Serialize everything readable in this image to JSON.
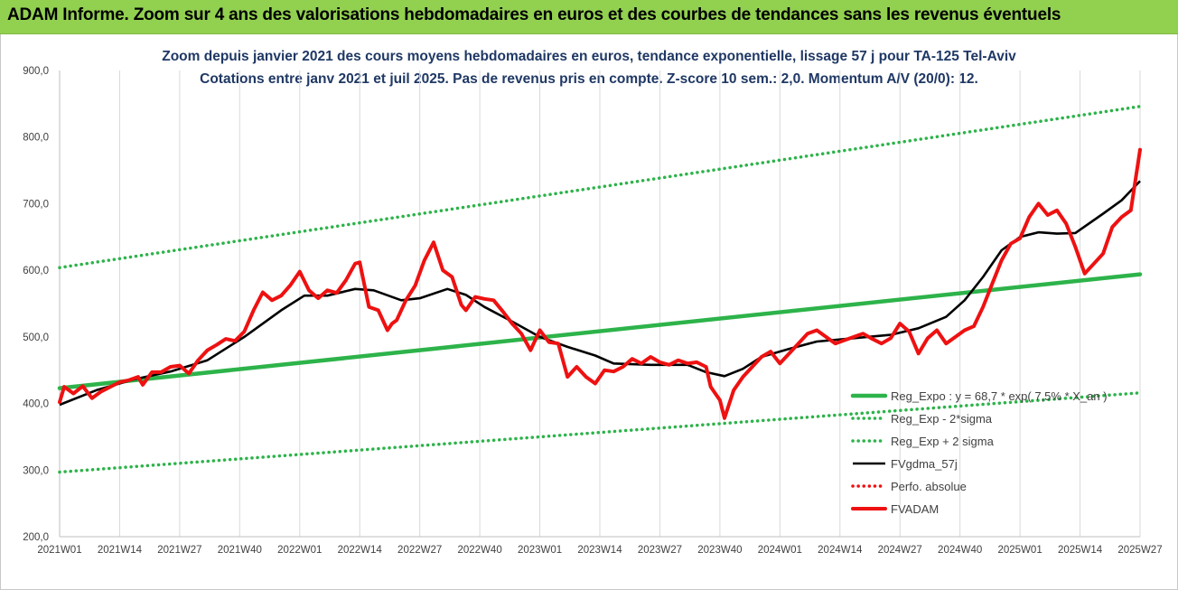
{
  "header": {
    "title": "ADAM Informe. Zoom sur 4 ans des valorisations hebdomadaires en euros et des courbes de tendances sans les revenus éventuels"
  },
  "colors": {
    "header_bg": "#92d050",
    "title_text": "#1f3864",
    "trend": "#2db34a",
    "band": "#2db34a",
    "smooth": "#000000",
    "price": "#ee1111",
    "perf": "#ee1111",
    "grid": "#d9d9d9"
  },
  "chart_data": {
    "type": "line",
    "title": "Zoom depuis janvier 2021 des cours moyens hebdomadaires en euros, tendance exponentielle, lissage 57 j pour TA-125 Tel-Aviv",
    "subtitle": "Cotations entre janv 2021 et juil 2025. Pas de revenus pris en compte. Z-score 10 sem.: 2,0. Momentum A/V (20/0): 12.",
    "xlabel": "",
    "ylabel": "",
    "ylim": [
      200,
      900
    ],
    "yticks": [
      "200,0",
      "300,0",
      "400,0",
      "500,0",
      "600,0",
      "700,0",
      "800,0",
      "900,0"
    ],
    "xlim": [
      0,
      234
    ],
    "xticks": [
      {
        "label": "2021W01",
        "i": 0
      },
      {
        "label": "2021W14",
        "i": 13
      },
      {
        "label": "2021W27",
        "i": 26
      },
      {
        "label": "2021W40",
        "i": 39
      },
      {
        "label": "2022W01",
        "i": 52
      },
      {
        "label": "2022W14",
        "i": 65
      },
      {
        "label": "2022W27",
        "i": 78
      },
      {
        "label": "2022W40",
        "i": 91
      },
      {
        "label": "2023W01",
        "i": 104
      },
      {
        "label": "2023W14",
        "i": 117
      },
      {
        "label": "2023W27",
        "i": 130
      },
      {
        "label": "2023W40",
        "i": 143
      },
      {
        "label": "2024W01",
        "i": 156
      },
      {
        "label": "2024W14",
        "i": 169
      },
      {
        "label": "2024W27",
        "i": 182
      },
      {
        "label": "2024W40",
        "i": 195
      },
      {
        "label": "2025W01",
        "i": 208
      },
      {
        "label": "2025W14",
        "i": 221
      },
      {
        "label": "2025W27",
        "i": 234
      }
    ],
    "grid": "vertical",
    "legend_position": "bottom-right",
    "series": [
      {
        "name": "Reg_Expo : y = 68,7 * exp( 7,5% * X_an )",
        "key": "trend",
        "style": "solid-thick",
        "color": "#2db34a",
        "x": [
          0,
          234
        ],
        "values": [
          423,
          594
        ]
      },
      {
        "name": "Reg_Exp - 2*sigma",
        "key": "lower",
        "style": "dotted",
        "color": "#2db34a",
        "x": [
          0,
          234
        ],
        "values": [
          297,
          416
        ]
      },
      {
        "name": "Reg_Exp + 2 sigma",
        "key": "upper",
        "style": "dotted",
        "color": "#2db34a",
        "x": [
          0,
          234
        ],
        "values": [
          604,
          846
        ]
      },
      {
        "name": "FVgdma_57j",
        "key": "smooth",
        "style": "solid",
        "color": "#000000",
        "x": [
          0,
          8,
          16,
          24,
          32,
          40,
          48,
          53,
          58,
          64,
          68,
          74,
          78,
          84,
          88,
          92,
          98,
          104,
          110,
          116,
          120,
          128,
          136,
          140,
          144,
          148,
          152,
          158,
          164,
          172,
          180,
          186,
          192,
          196,
          200,
          204,
          208,
          212,
          216,
          220,
          226,
          230,
          234
        ],
        "values": [
          398,
          420,
          436,
          448,
          465,
          500,
          540,
          562,
          562,
          572,
          570,
          555,
          558,
          572,
          563,
          545,
          523,
          500,
          485,
          472,
          460,
          458,
          458,
          447,
          441,
          452,
          470,
          482,
          493,
          498,
          503,
          513,
          530,
          555,
          590,
          630,
          650,
          657,
          655,
          656,
          685,
          705,
          734
        ]
      },
      {
        "name": "Perfo. absolue",
        "key": "perf",
        "style": "dotted",
        "color": "#ee1111",
        "x": [],
        "values": []
      },
      {
        "name": "FVADAM",
        "key": "price",
        "style": "solid-thick",
        "color": "#ee1111",
        "x": [
          0,
          1,
          3,
          5,
          7,
          9,
          11,
          13,
          15,
          17,
          18,
          20,
          22,
          24,
          26,
          28,
          30,
          32,
          34,
          36,
          38,
          40,
          42,
          44,
          46,
          48,
          50,
          52,
          54,
          56,
          58,
          60,
          62,
          64,
          65,
          67,
          69,
          71,
          72,
          73,
          75,
          77,
          79,
          81,
          83,
          85,
          87,
          88,
          90,
          92,
          94,
          96,
          98,
          100,
          102,
          104,
          106,
          108,
          110,
          112,
          114,
          116,
          118,
          120,
          122,
          124,
          126,
          128,
          130,
          132,
          134,
          136,
          138,
          140,
          141,
          143,
          144,
          146,
          148,
          150,
          152,
          154,
          156,
          158,
          160,
          162,
          164,
          166,
          168,
          170,
          172,
          174,
          176,
          178,
          180,
          182,
          184,
          186,
          188,
          190,
          192,
          194,
          196,
          198,
          200,
          202,
          204,
          206,
          208,
          210,
          212,
          214,
          216,
          218,
          220,
          222,
          224,
          226,
          228,
          230,
          232,
          234
        ],
        "values": [
          402,
          425,
          415,
          426,
          408,
          418,
          425,
          432,
          435,
          440,
          428,
          447,
          447,
          455,
          457,
          445,
          465,
          480,
          488,
          497,
          494,
          508,
          540,
          567,
          555,
          562,
          578,
          598,
          570,
          558,
          570,
          566,
          585,
          610,
          612,
          545,
          540,
          510,
          520,
          525,
          555,
          577,
          615,
          642,
          600,
          590,
          548,
          540,
          560,
          557,
          555,
          538,
          520,
          505,
          480,
          510,
          492,
          490,
          440,
          455,
          440,
          430,
          450,
          448,
          455,
          467,
          460,
          470,
          462,
          458,
          465,
          460,
          462,
          455,
          425,
          405,
          378,
          420,
          440,
          455,
          470,
          478,
          460,
          475,
          490,
          505,
          510,
          500,
          490,
          495,
          500,
          505,
          497,
          490,
          498,
          520,
          508,
          475,
          498,
          510,
          490,
          500,
          510,
          516,
          545,
          580,
          615,
          640,
          648,
          680,
          700,
          683,
          690,
          670,
          635,
          595,
          610,
          625,
          665,
          680,
          690,
          781
        ]
      }
    ]
  }
}
